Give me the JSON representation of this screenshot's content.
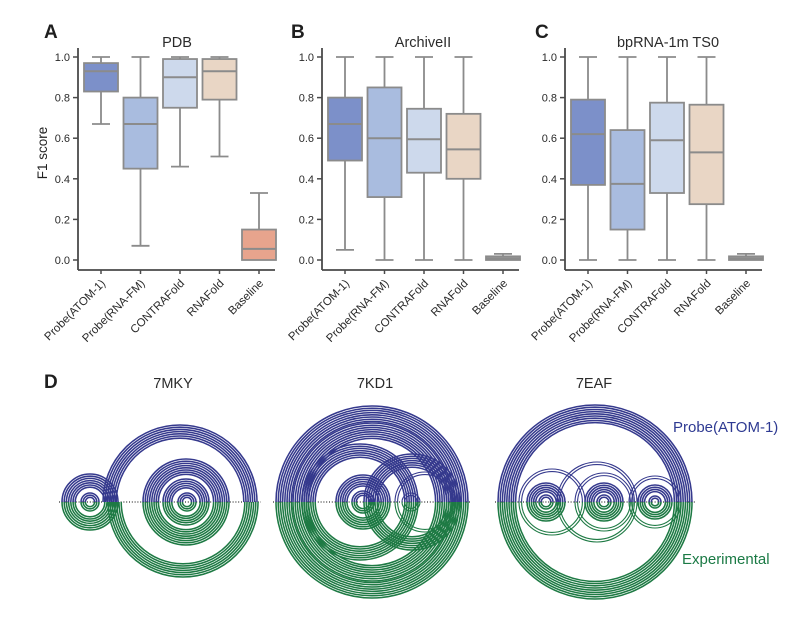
{
  "chart_data": [
    {
      "type": "boxplot",
      "panel_letter": "A",
      "title": "PDB",
      "ylabel": "F1 score",
      "ylim": [
        0,
        1
      ],
      "yticks": [
        0,
        0.2,
        0.4,
        0.6,
        0.8,
        1
      ],
      "categories": [
        "Probe(ATOM-1)",
        "Probe(RNA-FM)",
        "CONTRAFold",
        "RNAFold",
        "Baseline"
      ],
      "boxes": [
        {
          "label": "Probe(ATOM-1)",
          "whislo": 0.67,
          "q1": 0.83,
          "med": 0.93,
          "q3": 0.97,
          "whishi": 1.0,
          "color": "#7c90c9"
        },
        {
          "label": "Probe(RNA-FM)",
          "whislo": 0.07,
          "q1": 0.45,
          "med": 0.67,
          "q3": 0.8,
          "whishi": 1.0,
          "color": "#a9bcdf"
        },
        {
          "label": "CONTRAFold",
          "whislo": 0.46,
          "q1": 0.75,
          "med": 0.9,
          "q3": 0.99,
          "whishi": 1.0,
          "color": "#cdd9ec"
        },
        {
          "label": "RNAFold",
          "whislo": 0.51,
          "q1": 0.79,
          "med": 0.93,
          "q3": 0.99,
          "whishi": 1.0,
          "color": "#e9d6c5"
        },
        {
          "label": "Baseline",
          "whislo": 0.0,
          "q1": 0.0,
          "med": 0.055,
          "q3": 0.15,
          "whishi": 0.33,
          "color": "#e7a48d"
        }
      ]
    },
    {
      "type": "boxplot",
      "panel_letter": "B",
      "title": "ArchiveII",
      "ylabel": "",
      "ylim": [
        0,
        1
      ],
      "yticks": [
        0,
        0.2,
        0.4,
        0.6,
        0.8,
        1
      ],
      "categories": [
        "Probe(ATOM-1)",
        "Probe(RNA-FM)",
        "CONTRAFold",
        "RNAFold",
        "Baseline"
      ],
      "boxes": [
        {
          "label": "Probe(ATOM-1)",
          "whislo": 0.05,
          "q1": 0.49,
          "med": 0.67,
          "q3": 0.8,
          "whishi": 1.0,
          "color": "#7c90c9"
        },
        {
          "label": "Probe(RNA-FM)",
          "whislo": 0.0,
          "q1": 0.31,
          "med": 0.6,
          "q3": 0.85,
          "whishi": 1.0,
          "color": "#a9bcdf"
        },
        {
          "label": "CONTRAFold",
          "whislo": 0.0,
          "q1": 0.43,
          "med": 0.595,
          "q3": 0.745,
          "whishi": 1.0,
          "color": "#cdd9ec"
        },
        {
          "label": "RNAFold",
          "whislo": 0.0,
          "q1": 0.4,
          "med": 0.545,
          "q3": 0.72,
          "whishi": 1.0,
          "color": "#e9d6c5"
        },
        {
          "label": "Baseline",
          "whislo": 0.0,
          "q1": 0.0,
          "med": 0.007,
          "q3": 0.018,
          "whishi": 0.03,
          "color": "#9b9b9b"
        }
      ]
    },
    {
      "type": "boxplot",
      "panel_letter": "C",
      "title": "bpRNA-1m TS0",
      "ylabel": "",
      "ylim": [
        0,
        1
      ],
      "yticks": [
        0,
        0.2,
        0.4,
        0.6,
        0.8,
        1
      ],
      "categories": [
        "Probe(ATOM-1)",
        "Probe(RNA-FM)",
        "CONTRAFold",
        "RNAFold",
        "Baseline"
      ],
      "boxes": [
        {
          "label": "Probe(ATOM-1)",
          "whislo": 0.0,
          "q1": 0.37,
          "med": 0.62,
          "q3": 0.79,
          "whishi": 1.0,
          "color": "#7c90c9"
        },
        {
          "label": "Probe(RNA-FM)",
          "whislo": 0.0,
          "q1": 0.15,
          "med": 0.375,
          "q3": 0.64,
          "whishi": 1.0,
          "color": "#a9bcdf"
        },
        {
          "label": "CONTRAFold",
          "whislo": 0.0,
          "q1": 0.33,
          "med": 0.59,
          "q3": 0.775,
          "whishi": 1.0,
          "color": "#cdd9ec"
        },
        {
          "label": "RNAFold",
          "whislo": 0.0,
          "q1": 0.275,
          "med": 0.53,
          "q3": 0.765,
          "whishi": 1.0,
          "color": "#e9d6c5"
        },
        {
          "label": "Baseline",
          "whislo": 0.0,
          "q1": 0.0,
          "med": 0.007,
          "q3": 0.018,
          "whishi": 0.03,
          "color": "#9b9b9b"
        }
      ]
    },
    {
      "type": "arc-diagram",
      "panel_letter": "D",
      "legend": {
        "top": "Probe(ATOM-1)",
        "bottom": "Experimental"
      },
      "colors": {
        "top": "#35398d",
        "bottom": "#1e7a44"
      },
      "structures": [
        {
          "name": "7MKY",
          "arcs_top": [
            {
              "cx": 90,
              "r": 28,
              "n": 7
            },
            {
              "cx": 90,
              "r": 9,
              "n": 3
            },
            {
              "cx": 180,
              "r": 77,
              "n": 7
            },
            {
              "cx": 186,
              "r": 43,
              "n": 8
            },
            {
              "cx": 186,
              "r": 23,
              "n": 5
            },
            {
              "cx": 187,
              "r": 9,
              "n": 3
            }
          ],
          "arcs_bottom": [
            {
              "cx": 90,
              "r": 28,
              "n": 7
            },
            {
              "cx": 90,
              "r": 9,
              "n": 3
            },
            {
              "cx": 183,
              "r": 75,
              "n": 7
            },
            {
              "cx": 186,
              "r": 43,
              "n": 8
            },
            {
              "cx": 186,
              "r": 23,
              "n": 5
            },
            {
              "cx": 187,
              "r": 9,
              "n": 3
            }
          ]
        },
        {
          "name": "7KD1",
          "arcs_top": [
            {
              "cx": 372,
              "r": 96,
              "n": 8
            },
            {
              "cx": 372,
              "r": 79,
              "n": 8
            },
            {
              "cx": 360,
              "r": 58,
              "n": 7
            },
            {
              "cx": 363,
              "r": 27,
              "n": 6
            },
            {
              "cx": 363,
              "r": 11,
              "n": 3
            },
            {
              "cx": 412,
              "r": 48,
              "n": 7
            },
            {
              "cx": 425,
              "r": 30,
              "n": 2,
              "thin": true
            },
            {
              "cx": 411,
              "r": 9,
              "n": 2,
              "thin": true
            }
          ],
          "arcs_bottom": [
            {
              "cx": 372,
              "r": 96,
              "n": 8
            },
            {
              "cx": 372,
              "r": 79,
              "n": 8
            },
            {
              "cx": 360,
              "r": 58,
              "n": 7
            },
            {
              "cx": 363,
              "r": 27,
              "n": 6
            },
            {
              "cx": 363,
              "r": 11,
              "n": 3
            },
            {
              "cx": 412,
              "r": 48,
              "n": 7
            },
            {
              "cx": 425,
              "r": 30,
              "n": 2,
              "thin": true
            },
            {
              "cx": 411,
              "r": 9,
              "n": 2,
              "thin": true
            }
          ]
        },
        {
          "name": "7EAF",
          "arcs_top": [
            {
              "cx": 595,
              "r": 97,
              "n": 9
            },
            {
              "cx": 597,
              "r": 40,
              "n": 2,
              "thin": true
            },
            {
              "cx": 552,
              "r": 33,
              "n": 2,
              "thin": true
            },
            {
              "cx": 546,
              "r": 19,
              "n": 5
            },
            {
              "cx": 546,
              "r": 7,
              "n": 2
            },
            {
              "cx": 604,
              "r": 29,
              "n": 2,
              "thin": true
            },
            {
              "cx": 604,
              "r": 19,
              "n": 5
            },
            {
              "cx": 604,
              "r": 7,
              "n": 2
            },
            {
              "cx": 655,
              "r": 26,
              "n": 2,
              "thin": true
            },
            {
              "cx": 655,
              "r": 17,
              "n": 4
            },
            {
              "cx": 655,
              "r": 6,
              "n": 2
            }
          ],
          "arcs_bottom": [
            {
              "cx": 595,
              "r": 97,
              "n": 9
            },
            {
              "cx": 597,
              "r": 40,
              "n": 2,
              "thin": true
            },
            {
              "cx": 552,
              "r": 33,
              "n": 2,
              "thin": true
            },
            {
              "cx": 546,
              "r": 19,
              "n": 5
            },
            {
              "cx": 546,
              "r": 7,
              "n": 2
            },
            {
              "cx": 604,
              "r": 29,
              "n": 2,
              "thin": true
            },
            {
              "cx": 604,
              "r": 19,
              "n": 5
            },
            {
              "cx": 604,
              "r": 7,
              "n": 2
            },
            {
              "cx": 655,
              "r": 26,
              "n": 2,
              "thin": true
            },
            {
              "cx": 655,
              "r": 17,
              "n": 4
            },
            {
              "cx": 655,
              "r": 6,
              "n": 2
            }
          ]
        }
      ]
    }
  ]
}
